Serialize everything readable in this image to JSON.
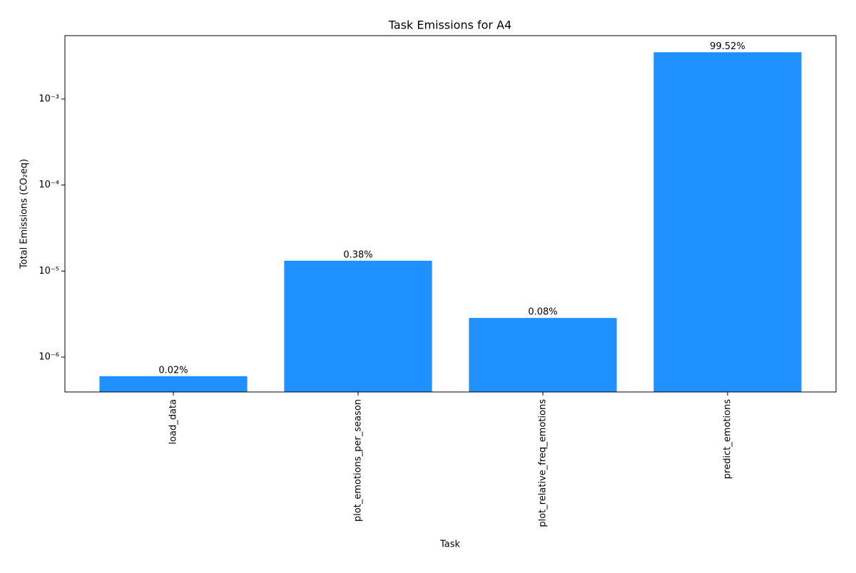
{
  "chart_data": {
    "type": "bar",
    "title": "Task Emissions for A4",
    "xlabel": "Task",
    "ylabel": "Total Emissions (CO₂eq)",
    "categories": [
      "load_data",
      "plot_emotions_per_season",
      "plot_relative_freq_emotions",
      "predict_emotions"
    ],
    "values": [
      6e-07,
      1.32e-05,
      2.85e-06,
      0.0035
    ],
    "percent_labels": [
      {
        "value": 0.02,
        "label": "0.02%"
      },
      {
        "value": 0.38,
        "label": "0.38%"
      },
      {
        "value": 0.08,
        "label": "0.08%"
      },
      {
        "value": 99.52,
        "label": "99.52%"
      }
    ],
    "color": "#1e90ff",
    "log_y": true,
    "ylim": [
      3.93e-07,
      0.00546
    ],
    "yticks": [
      {
        "value": 1e-06,
        "label": "10⁻⁶"
      },
      {
        "value": 1e-05,
        "label": "10⁻⁵"
      },
      {
        "value": 0.0001,
        "label": "10⁻⁴"
      },
      {
        "value": 0.001,
        "label": "10⁻³"
      }
    ],
    "grid": false
  }
}
